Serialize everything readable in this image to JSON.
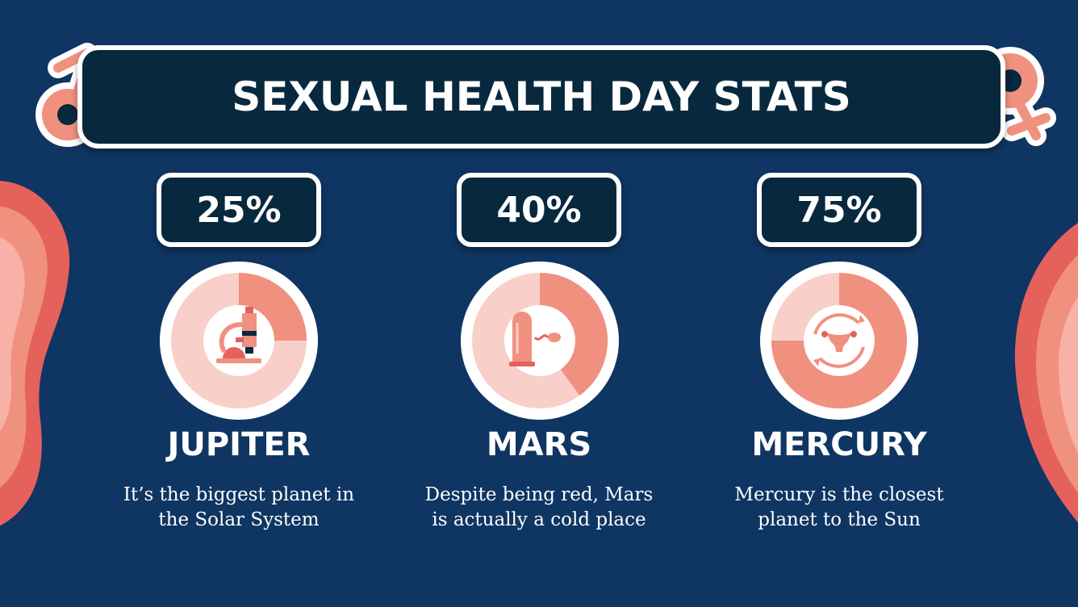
{
  "title": "SEXUAL HEALTH DAY STATS",
  "colors": {
    "background": "#0f3563",
    "panel": "#08283e",
    "ring_fill": "#f0907f",
    "ring_track": "#f9cfc9",
    "white": "#ffffff"
  },
  "decor": {
    "left_symbol": "male-symbol-icon",
    "right_symbol": "female-symbol-icon",
    "icons": [
      "microscope-icon",
      "condom-sperm-icon",
      "uterus-cycle-icon"
    ]
  },
  "chart_data": {
    "type": "pie",
    "title": "SEXUAL HEALTH DAY STATS",
    "categories": [
      "JUPITER",
      "MARS",
      "MERCURY"
    ],
    "values": [
      25,
      40,
      75
    ],
    "labels": [
      "25%",
      "40%",
      "75%"
    ],
    "unit": "%",
    "descriptions": [
      "It’s the biggest planet in the Solar System",
      "Despite being red, Mars is actually a cold place",
      "Mercury is the closest planet to the Sun"
    ]
  },
  "stats": [
    {
      "percent_label": "25%",
      "value": 25,
      "name": "JUPITER",
      "desc_line1": "It’s the biggest planet in",
      "desc_line2": "the Solar System"
    },
    {
      "percent_label": "40%",
      "value": 40,
      "name": "MARS",
      "desc_line1": "Despite being red, Mars",
      "desc_line2": "is actually a cold place"
    },
    {
      "percent_label": "75%",
      "value": 75,
      "name": "MERCURY",
      "desc_line1": "Mercury is the closest",
      "desc_line2": "planet to the Sun"
    }
  ]
}
